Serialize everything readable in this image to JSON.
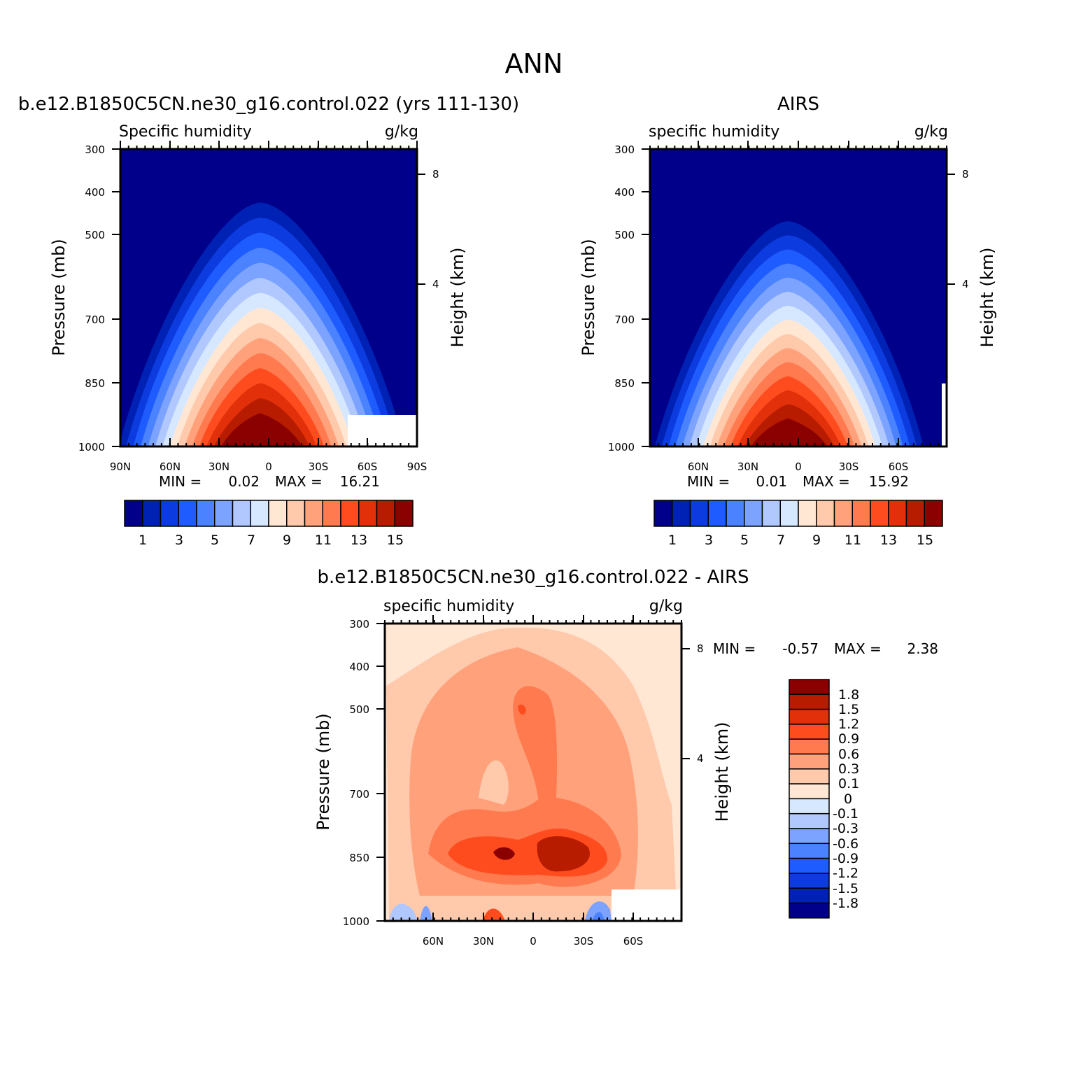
{
  "title": "ANN",
  "panel_colors": {
    "abs_levels": [
      "#00008b",
      "#0022b4",
      "#0c3ce0",
      "#1e5cff",
      "#4a82ff",
      "#7ba3ff",
      "#b1c8ff",
      "#d6e8ff",
      "#ffe7d4",
      "#ffc9ab",
      "#ffa27c",
      "#ff7a4f",
      "#ff4c1f",
      "#e1300a",
      "#b81c00",
      "#8b0000"
    ],
    "diff_levels": [
      "#00008b",
      "#0022b4",
      "#0c3ce0",
      "#1e5cff",
      "#4a82ff",
      "#7ba3ff",
      "#b1c8ff",
      "#d6e8ff",
      "#ffe7d4",
      "#ffc9ab",
      "#ffa27c",
      "#ff7a4f",
      "#ff4c1f",
      "#e1300a",
      "#b81c00",
      "#8b0000"
    ]
  },
  "panels": {
    "model": {
      "case": "b.e12.B1850C5CN.ne30_g16.control.022 (yrs 111-130)",
      "left_label": "Specific humidity",
      "right_label": "g/kg",
      "ylabel": "Pressure (mb)",
      "ylabel_right": "Height (km)",
      "x_ticks": [
        "90N",
        "60N",
        "30N",
        "0",
        "30S",
        "60S",
        "90S"
      ],
      "y_ticks": [
        "300",
        "400",
        "500",
        "700",
        "850",
        "1000"
      ],
      "height_ticks": [
        "8",
        "4"
      ],
      "min_label": "MIN =",
      "min_value": "0.02",
      "max_label": "MAX =",
      "max_value": "16.21",
      "colorbar_labels": [
        "1",
        "3",
        "5",
        "7",
        "9",
        "11",
        "13",
        "15"
      ]
    },
    "obs": {
      "case": "AIRS",
      "left_label": "specific humidity",
      "right_label": "g/kg",
      "ylabel": "Pressure (mb)",
      "ylabel_right": "Height (km)",
      "x_ticks": [
        "60N",
        "30N",
        "0",
        "30S",
        "60S"
      ],
      "y_ticks": [
        "300",
        "400",
        "500",
        "700",
        "850",
        "1000"
      ],
      "height_ticks": [
        "8",
        "4"
      ],
      "min_label": "MIN =",
      "min_value": "0.01",
      "max_label": "MAX =",
      "max_value": "15.92",
      "colorbar_labels": [
        "1",
        "3",
        "5",
        "7",
        "9",
        "11",
        "13",
        "15"
      ]
    },
    "diff": {
      "case": "b.e12.B1850C5CN.ne30_g16.control.022 - AIRS",
      "left_label": "specific humidity",
      "right_label": "g/kg",
      "ylabel": "Pressure (mb)",
      "ylabel_right": "Height (km)",
      "x_ticks": [
        "60N",
        "30N",
        "0",
        "30S",
        "60S"
      ],
      "y_ticks": [
        "300",
        "400",
        "500",
        "700",
        "850",
        "1000"
      ],
      "height_ticks": [
        "8",
        "4"
      ],
      "min_label": "MIN =",
      "min_value": "-0.57",
      "max_label": "MAX =",
      "max_value": "2.38",
      "colorbar_labels": [
        "1.8",
        "1.5",
        "1.2",
        "0.9",
        "0.6",
        "0.3",
        "0.1",
        "0",
        "-0.1",
        "-0.3",
        "-0.6",
        "-0.9",
        "-1.2",
        "-1.5",
        "-1.8"
      ]
    }
  },
  "chart_data": [
    {
      "type": "heatmap",
      "title": "b.e12.B1850C5CN.ne30_g16.control.022 (yrs 111-130)",
      "xlabel": "",
      "ylabel": "Pressure (mb)",
      "x_range": [
        "90N",
        "90S"
      ],
      "y_range_mb": [
        300,
        1000
      ],
      "contour_levels": [
        1,
        2,
        3,
        4,
        5,
        6,
        7,
        8,
        9,
        10,
        11,
        12,
        13,
        14,
        15
      ],
      "min": 0.02,
      "max": 16.21
    },
    {
      "type": "heatmap",
      "title": "AIRS",
      "xlabel": "",
      "ylabel": "Pressure (mb)",
      "y_range_mb": [
        300,
        1000
      ],
      "contour_levels": [
        1,
        2,
        3,
        4,
        5,
        6,
        7,
        8,
        9,
        10,
        11,
        12,
        13,
        14,
        15
      ],
      "min": 0.01,
      "max": 15.92
    },
    {
      "type": "heatmap",
      "title": "b.e12.B1850C5CN.ne30_g16.control.022 - AIRS",
      "xlabel": "",
      "ylabel": "Pressure (mb)",
      "y_range_mb": [
        300,
        1000
      ],
      "contour_levels": [
        -1.8,
        -1.5,
        -1.2,
        -0.9,
        -0.6,
        -0.3,
        -0.1,
        0,
        0.1,
        0.3,
        0.6,
        0.9,
        1.2,
        1.5,
        1.8
      ],
      "min": -0.57,
      "max": 2.38
    }
  ]
}
